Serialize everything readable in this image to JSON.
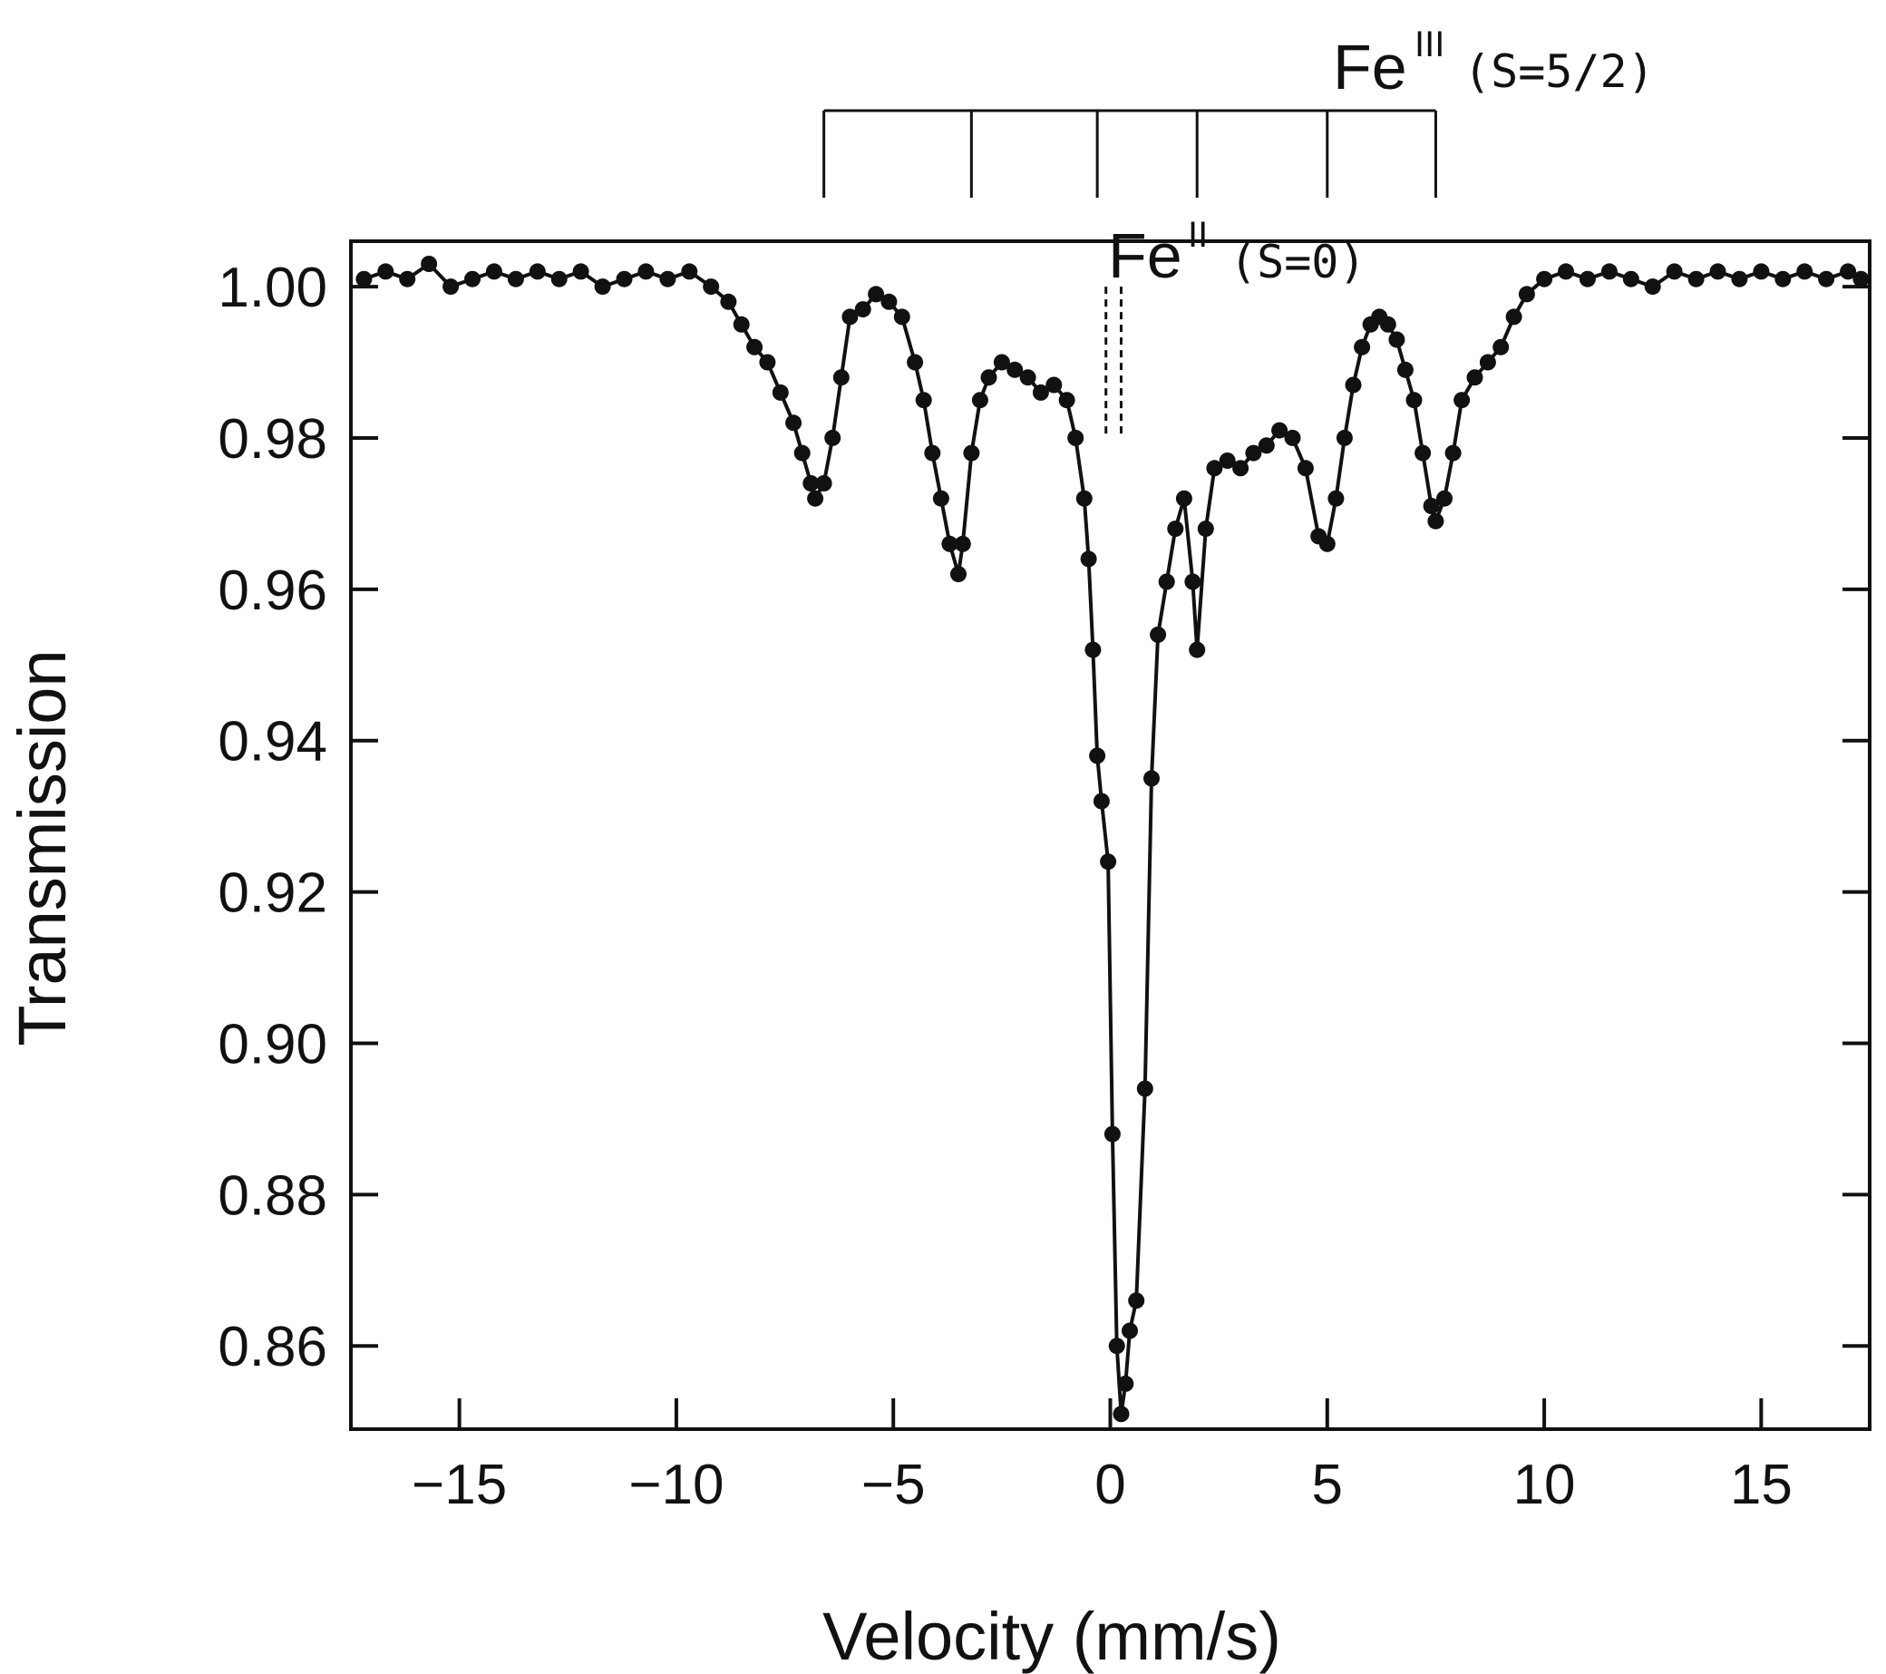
{
  "chart_data": {
    "type": "scatter",
    "xlabel": "Velocity (mm/s)",
    "ylabel": "Transmission",
    "xlim": [
      -17.5,
      17.5
    ],
    "ylim": [
      0.849,
      1.006
    ],
    "xticks": [
      -15,
      -10,
      -5,
      0,
      5,
      10,
      15
    ],
    "xtick_labels": [
      "−15",
      "−10",
      "−5",
      "0",
      "5",
      "10",
      "15"
    ],
    "yticks": [
      0.86,
      0.88,
      0.9,
      0.92,
      0.94,
      0.96,
      0.98,
      1.0
    ],
    "ytick_labels": [
      "0.86",
      "0.88",
      "0.90",
      "0.92",
      "0.94",
      "0.96",
      "0.98",
      "1.00"
    ],
    "grid": false,
    "annotations": {
      "fe3": {
        "base": "Fe",
        "sup": "III",
        "sub": "(S=5/2)"
      },
      "fe2": {
        "base": "Fe",
        "sup": "II",
        "sub": "(S=0)"
      }
    },
    "fe3_sextet_lines": [
      -6.6,
      -3.2,
      -0.3,
      2.0,
      5.0,
      7.5
    ],
    "fe3_sextet_span": [
      -6.6,
      7.5
    ],
    "fe2_doublet_lines": [
      -0.1,
      0.25
    ],
    "fe2_line_range": [
      0.98,
      1.0
    ],
    "series": [
      {
        "style": "line-with-markers",
        "color": "#111111",
        "x": [
          -17.2,
          -16.7,
          -16.2,
          -15.7,
          -15.2,
          -14.7,
          -14.2,
          -13.7,
          -13.2,
          -12.7,
          -12.2,
          -11.7,
          -11.2,
          -10.7,
          -10.2,
          -9.7,
          -9.2,
          -8.8,
          -8.5,
          -8.2,
          -7.9,
          -7.6,
          -7.3,
          -7.1,
          -6.9,
          -6.8,
          -6.6,
          -6.4,
          -6.2,
          -6.0,
          -5.7,
          -5.4,
          -5.1,
          -4.8,
          -4.5,
          -4.3,
          -4.1,
          -3.9,
          -3.7,
          -3.5,
          -3.4,
          -3.2,
          -3.0,
          -2.8,
          -2.5,
          -2.2,
          -1.9,
          -1.6,
          -1.3,
          -1.0,
          -0.8,
          -0.6,
          -0.5,
          -0.4,
          -0.3,
          -0.2,
          -0.05,
          0.05,
          0.15,
          0.25,
          0.35,
          0.45,
          0.6,
          0.8,
          0.95,
          1.1,
          1.3,
          1.5,
          1.7,
          1.9,
          2.0,
          2.2,
          2.4,
          2.7,
          3.0,
          3.3,
          3.6,
          3.9,
          4.2,
          4.5,
          4.8,
          5.0,
          5.2,
          5.4,
          5.6,
          5.8,
          6.0,
          6.2,
          6.4,
          6.6,
          6.8,
          7.0,
          7.2,
          7.4,
          7.5,
          7.7,
          7.9,
          8.1,
          8.4,
          8.7,
          9.0,
          9.3,
          9.6,
          10.0,
          10.5,
          11.0,
          11.5,
          12.0,
          12.5,
          13.0,
          13.5,
          14.0,
          14.5,
          15.0,
          15.5,
          16.0,
          16.5,
          17.0,
          17.3
        ],
        "y": [
          1.001,
          1.002,
          1.001,
          1.003,
          1.0,
          1.001,
          1.002,
          1.001,
          1.002,
          1.001,
          1.002,
          1.0,
          1.001,
          1.002,
          1.001,
          1.002,
          1.0,
          0.998,
          0.995,
          0.992,
          0.99,
          0.986,
          0.982,
          0.978,
          0.974,
          0.972,
          0.974,
          0.98,
          0.988,
          0.996,
          0.997,
          0.999,
          0.998,
          0.996,
          0.99,
          0.985,
          0.978,
          0.972,
          0.966,
          0.962,
          0.966,
          0.978,
          0.985,
          0.988,
          0.99,
          0.989,
          0.988,
          0.986,
          0.987,
          0.985,
          0.98,
          0.972,
          0.964,
          0.952,
          0.938,
          0.932,
          0.924,
          0.888,
          0.86,
          0.851,
          0.855,
          0.862,
          0.866,
          0.894,
          0.935,
          0.954,
          0.961,
          0.968,
          0.972,
          0.961,
          0.952,
          0.968,
          0.976,
          0.977,
          0.976,
          0.978,
          0.979,
          0.981,
          0.98,
          0.976,
          0.967,
          0.966,
          0.972,
          0.98,
          0.987,
          0.992,
          0.995,
          0.996,
          0.995,
          0.993,
          0.989,
          0.985,
          0.978,
          0.971,
          0.969,
          0.972,
          0.978,
          0.985,
          0.988,
          0.99,
          0.992,
          0.996,
          0.999,
          1.001,
          1.002,
          1.001,
          1.002,
          1.001,
          1.0,
          1.002,
          1.001,
          1.002,
          1.001,
          1.002,
          1.001,
          1.002,
          1.001,
          1.002,
          1.001
        ]
      }
    ]
  }
}
